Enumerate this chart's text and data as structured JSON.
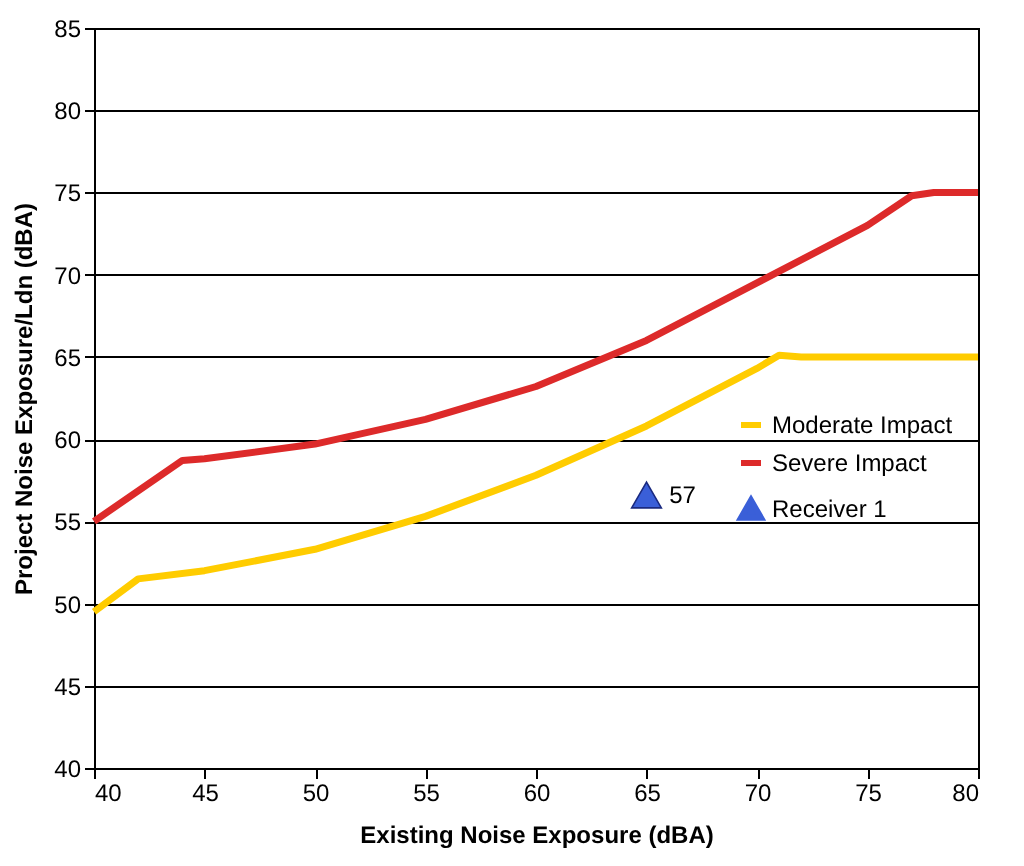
{
  "chart_data": {
    "type": "line",
    "xlabel": "Existing Noise Exposure (dBA)",
    "ylabel": "Project Noise Exposure/Ldn (dBA)",
    "xlim": [
      40,
      80
    ],
    "xticks": [
      40,
      45,
      50,
      55,
      60,
      65,
      70,
      75,
      80
    ],
    "ylim": [
      40,
      85
    ],
    "yticks": [
      40,
      45,
      50,
      55,
      60,
      65,
      70,
      75,
      80,
      85
    ],
    "grid": "y",
    "legend": "right",
    "series": [
      {
        "name": "Moderate Impact",
        "color": "#ffcc00",
        "x": [
          40,
          42,
          45,
          50,
          55,
          60,
          65,
          70,
          71,
          72,
          80
        ],
        "values": [
          49.5,
          51.5,
          52,
          53.3,
          55.3,
          57.8,
          60.8,
          64.3,
          65.1,
          65,
          65
        ]
      },
      {
        "name": "Severe Impact",
        "color": "#dd2a2a",
        "x": [
          40,
          44,
          45,
          50,
          55,
          60,
          65,
          70,
          75,
          77,
          78,
          80
        ],
        "values": [
          55,
          58.7,
          58.8,
          59.7,
          61.2,
          63.2,
          66,
          69.5,
          73,
          74.8,
          75,
          75
        ]
      },
      {
        "name": "Receiver 1",
        "color": "#3a5fd8",
        "type": "scatter",
        "marker": "triangle",
        "x": [
          65
        ],
        "values": [
          56.6
        ],
        "value_labels": [
          "57"
        ]
      }
    ]
  }
}
